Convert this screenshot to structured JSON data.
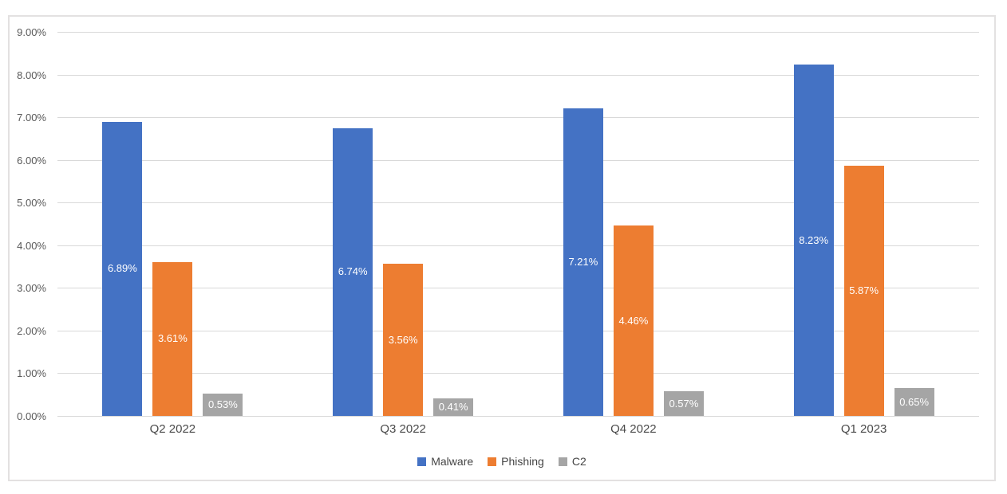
{
  "chart_data": {
    "type": "bar",
    "title": "",
    "xlabel": "",
    "ylabel": "",
    "categories": [
      "Q2 2022",
      "Q3 2022",
      "Q4 2022",
      "Q1 2023"
    ],
    "series": [
      {
        "name": "Malware",
        "color": "#4472C4",
        "values": [
          6.89,
          6.74,
          7.21,
          8.23
        ],
        "labels": [
          "6.89%",
          "6.74%",
          "7.21%",
          "8.23%"
        ]
      },
      {
        "name": "Phishing",
        "color": "#ED7D31",
        "values": [
          3.61,
          3.56,
          4.46,
          5.87
        ],
        "labels": [
          "3.61%",
          "3.56%",
          "4.46%",
          "5.87%"
        ]
      },
      {
        "name": "C2",
        "color": "#A5A5A5",
        "values": [
          0.53,
          0.41,
          0.57,
          0.65
        ],
        "labels": [
          "0.53%",
          "0.41%",
          "0.57%",
          "0.65%"
        ]
      }
    ],
    "y_axis": {
      "min": 0,
      "max": 9,
      "step": 1,
      "tick_labels": [
        "0.00%",
        "1.00%",
        "2.00%",
        "3.00%",
        "4.00%",
        "5.00%",
        "6.00%",
        "7.00%",
        "8.00%",
        "9.00%"
      ]
    },
    "legend": {
      "position": "bottom",
      "entries": [
        "Malware",
        "Phishing",
        "C2"
      ]
    },
    "grid": true,
    "data_label_color": "#FFFFFF"
  },
  "colors": {
    "gridline": "#D9D9D9",
    "axis_text": "#595959",
    "category_text": "#4A4A4A",
    "frame_border": "#E3E1E1",
    "background": "#FFFFFF"
  }
}
